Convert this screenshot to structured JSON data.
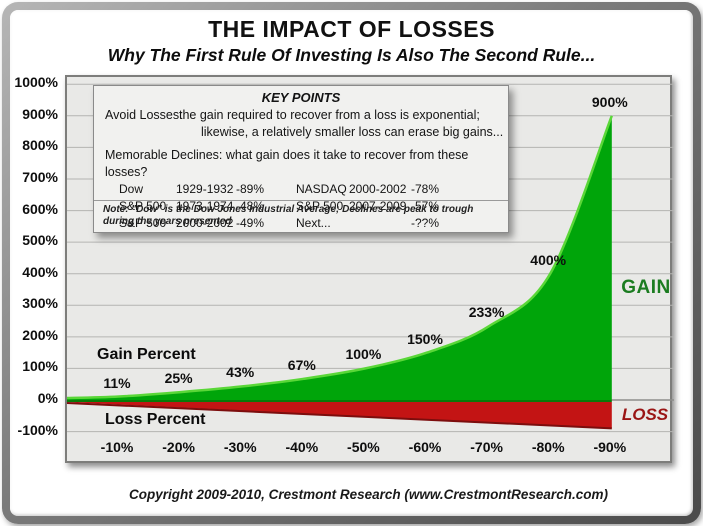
{
  "header": {
    "title": "THE IMPACT OF LOSSES",
    "subtitle": "Why The First Rule Of Investing Is Also The Second Rule..."
  },
  "key_points": {
    "heading": "KEY POINTS",
    "avoid": {
      "label": "Avoid Losses:",
      "line1": "the gain required to recover from a loss is exponential;",
      "line2": "likewise, a relatively smaller loss can erase big gains..."
    },
    "declines_intro": "Memorable Declines:  what gain does it take to recover from these losses?",
    "declines_rows": [
      [
        "Dow",
        "1929-1932",
        "-89%",
        "NASDAQ",
        "2000-2002",
        "-78%"
      ],
      [
        "S&P 500",
        "1973-1974",
        "-48%",
        "S&P 500",
        "2007-2009",
        "-57%"
      ],
      [
        "S&P 500",
        "2000-2002",
        "-49%",
        "Next...",
        "",
        "-??%"
      ]
    ],
    "note": "Note: \"Dow\" is the Dow Jones Industrial Average; Declines are peak to trough during the years presented"
  },
  "chart_data": {
    "type": "area",
    "title": "THE IMPACT OF LOSSES",
    "subtitle": "Why The First Rule Of Investing Is Also The Second Rule...",
    "xlabel": "Loss Percent",
    "ylabel": "Gain Percent",
    "ylim": [
      -100,
      1000
    ],
    "grid": "horizontal",
    "x_values": [
      -10,
      -20,
      -30,
      -40,
      -50,
      -60,
      -70,
      -80,
      -90
    ],
    "x_tick_labels": [
      "-10%",
      "-20%",
      "-30%",
      "-40%",
      "-50%",
      "-60%",
      "-70%",
      "-80%",
      "-90%"
    ],
    "y_ticks": [
      1000,
      900,
      800,
      700,
      600,
      500,
      400,
      300,
      200,
      100,
      0,
      -100
    ],
    "y_tick_labels": [
      "1000%",
      "900%",
      "800%",
      "700%",
      "600%",
      "500%",
      "400%",
      "300%",
      "200%",
      "100%",
      "0%",
      "-100%"
    ],
    "series": [
      {
        "name": "Gain Percent",
        "values": [
          11,
          25,
          43,
          67,
          100,
          150,
          233,
          400,
          900
        ],
        "point_labels": [
          "11%",
          "25%",
          "43%",
          "67%",
          "100%",
          "150%",
          "233%",
          "400%",
          "900%"
        ],
        "fill": "#00a50a",
        "highlight": "#5ad738",
        "shadow_edge": "#087a08"
      },
      {
        "name": "Loss Percent",
        "values": [
          -10,
          -20,
          -30,
          -40,
          -50,
          -60,
          -70,
          -80,
          -90
        ],
        "fill": "#c31414",
        "shadow_edge": "#7c0d0d"
      }
    ],
    "area_labels": {
      "gain": "GAIN",
      "loss": "LOSS"
    },
    "colors": {
      "gain_label": "#1b7c20",
      "loss_label": "#9a1515",
      "plot_bg": "#e9e9e7",
      "gridline": "#b4b4b2"
    }
  },
  "footer": {
    "copyright": "Copyright 2009-2010, Crestmont Research (www.CrestmontResearch.com)"
  }
}
